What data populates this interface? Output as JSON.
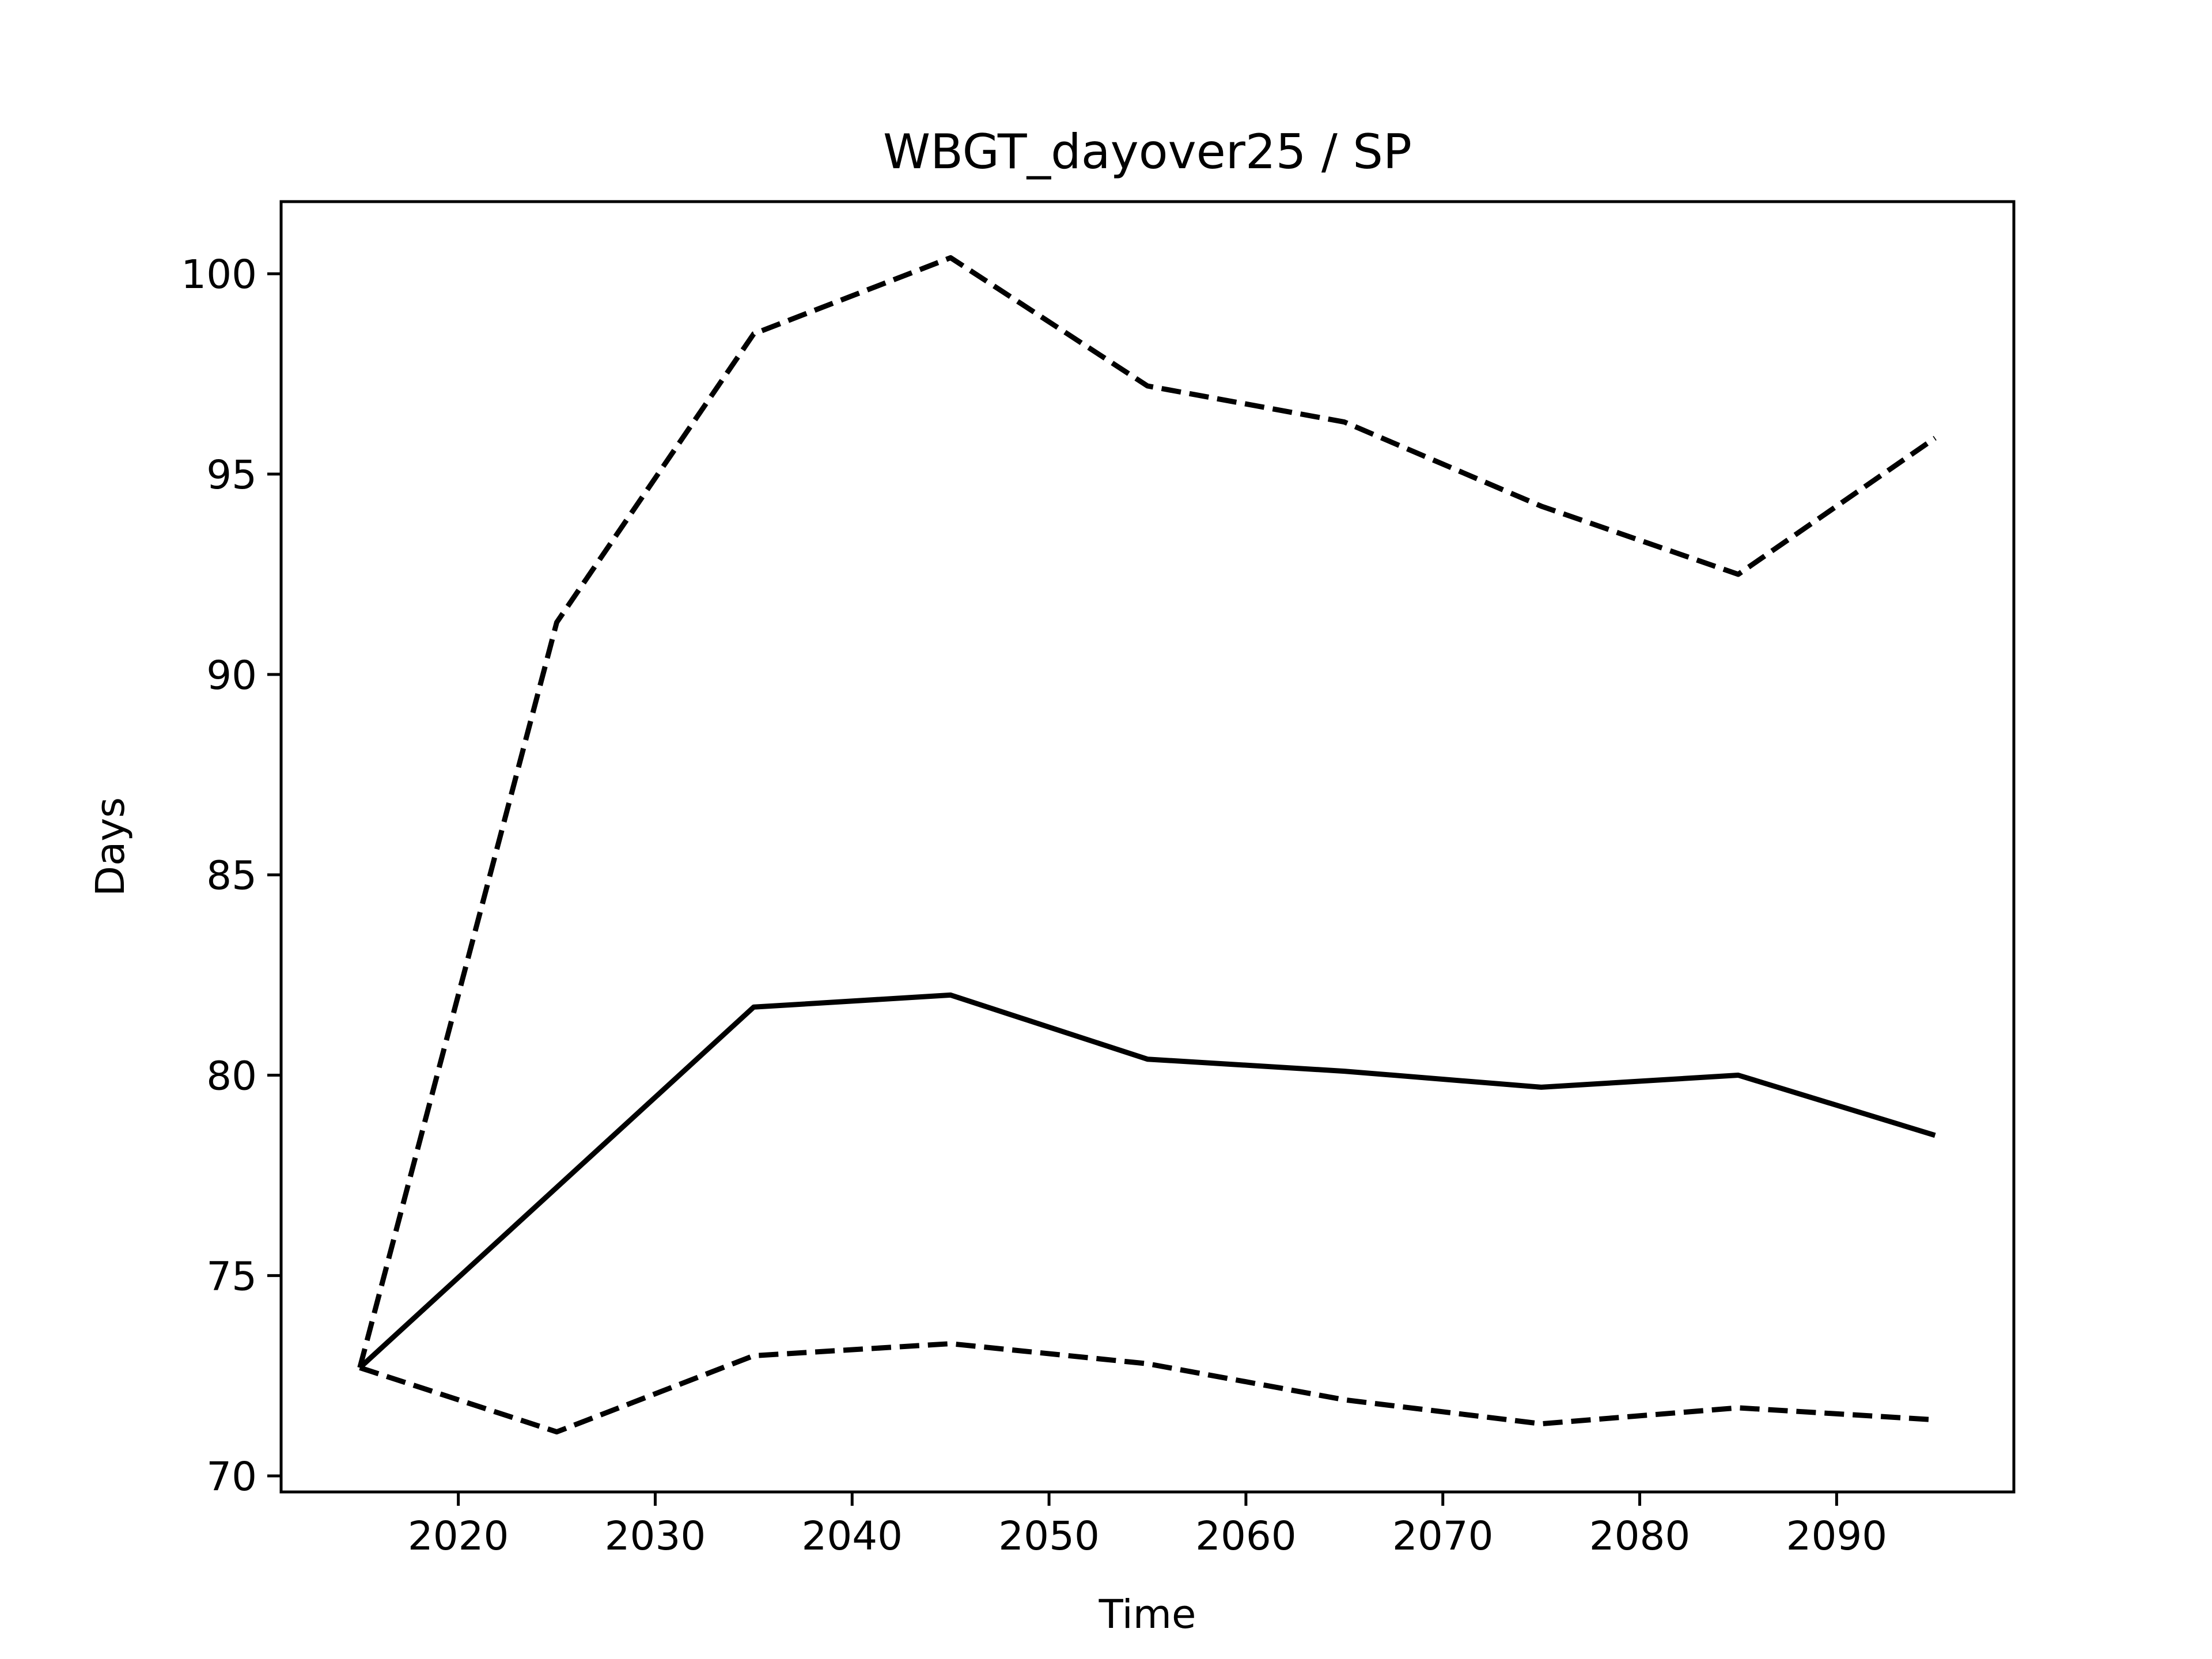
{
  "chart_data": {
    "type": "line",
    "title": "WBGT_dayover25 / SP",
    "xlabel": "Time",
    "ylabel": "Days",
    "xlim": [
      2011,
      2099
    ],
    "ylim": [
      69.6,
      101.8
    ],
    "xticks": [
      2020,
      2030,
      2040,
      2050,
      2060,
      2070,
      2080,
      2090
    ],
    "yticks": [
      70,
      75,
      80,
      85,
      90,
      95,
      100
    ],
    "xtick_labels": [
      "2020",
      "2030",
      "2040",
      "2050",
      "2060",
      "2070",
      "2080",
      "2090"
    ],
    "ytick_labels": [
      "70",
      "75",
      "80",
      "85",
      "90",
      "95",
      "100"
    ],
    "grid": false,
    "legend": "none",
    "x": [
      2015,
      2025,
      2035,
      2045,
      2055,
      2065,
      2075,
      2085,
      2095
    ],
    "series": [
      {
        "style": "solid",
        "color": "#000000",
        "values": [
          72.7,
          77.2,
          81.7,
          82.0,
          80.4,
          80.1,
          79.7,
          80.0,
          78.5
        ]
      },
      {
        "style": "dashed",
        "color": "#000000",
        "values": [
          72.7,
          91.3,
          98.5,
          100.4,
          97.2,
          96.3,
          94.2,
          92.5,
          95.9
        ]
      },
      {
        "style": "dashed",
        "color": "#000000",
        "values": [
          72.7,
          71.1,
          73.0,
          73.3,
          72.8,
          71.9,
          71.3,
          71.7,
          71.4
        ]
      }
    ]
  }
}
